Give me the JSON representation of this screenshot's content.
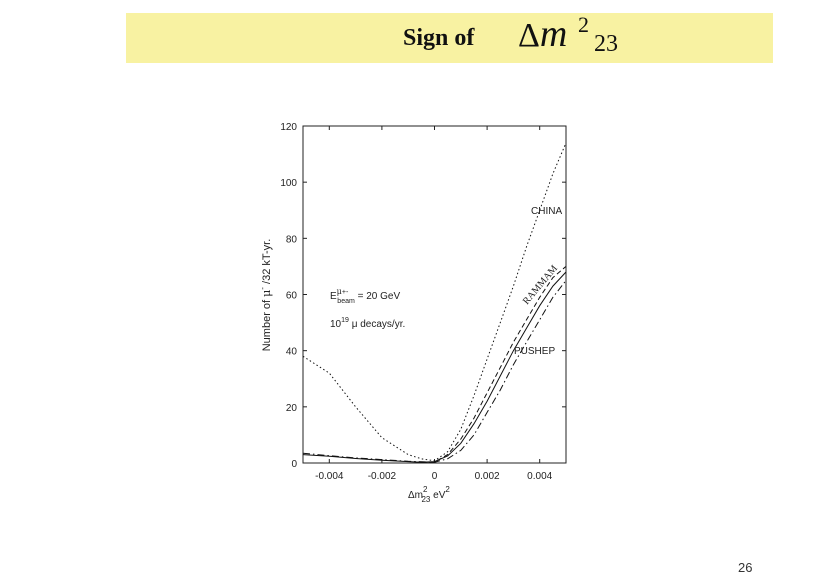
{
  "slide": {
    "title": "Sign of",
    "title_math": {
      "symbol": "Δ",
      "variable": "m",
      "superscript": "2",
      "subscript": "23"
    },
    "page_number": "26"
  },
  "chart_data": {
    "type": "line",
    "xlabel": {
      "base": "Δm",
      "sup": "2",
      "sub": "23",
      "unit": " eV",
      "unit_sup": "2"
    },
    "ylabel": {
      "before": "Number of ",
      "mu": "μ",
      "sup": "-",
      "after": " /32 kT-yr."
    },
    "xlim": [
      -0.005,
      0.005
    ],
    "ylim": [
      0,
      120
    ],
    "x_ticks": [
      -0.004,
      -0.002,
      0,
      0.002,
      0.004
    ],
    "x_tick_labels": [
      "-0.004",
      "-0.002",
      "0",
      "0.002",
      "0.004"
    ],
    "y_ticks": [
      0,
      20,
      40,
      60,
      80,
      100,
      120
    ],
    "y_tick_labels": [
      "0",
      "20",
      "40",
      "60",
      "80",
      "100",
      "120"
    ],
    "grid": false,
    "legend": "none",
    "annotations": {
      "beam_line": {
        "E": "E",
        "mu": "μ",
        "sup": "+-",
        "beam": "beam",
        "value": " = 20 GeV"
      },
      "decay_line": {
        "base": "10",
        "sup": "19",
        "text": " μ decays/yr."
      },
      "china": "CHINA",
      "rammam": "RAMMAM",
      "pushep": "PUSHEP"
    },
    "series": [
      {
        "name": "CHINA",
        "style": "dotted",
        "points": [
          [
            -0.005,
            38
          ],
          [
            -0.004,
            32
          ],
          [
            -0.003,
            20
          ],
          [
            -0.002,
            9
          ],
          [
            -0.001,
            3
          ],
          [
            -0.0005,
            1.5
          ],
          [
            0,
            0.8
          ],
          [
            0.0005,
            4
          ],
          [
            0.001,
            12
          ],
          [
            0.0015,
            24
          ],
          [
            0.002,
            37
          ],
          [
            0.0025,
            50
          ],
          [
            0.003,
            63
          ],
          [
            0.0035,
            77
          ],
          [
            0.004,
            90
          ],
          [
            0.0045,
            103
          ],
          [
            0.005,
            114
          ]
        ]
      },
      {
        "name": "RAMMAM",
        "style": "solid",
        "points": [
          [
            -0.005,
            3
          ],
          [
            -0.004,
            2.4
          ],
          [
            -0.003,
            1.6
          ],
          [
            -0.002,
            1
          ],
          [
            -0.001,
            0.5
          ],
          [
            -0.0005,
            0.3
          ],
          [
            0,
            0.5
          ],
          [
            0.0005,
            2.5
          ],
          [
            0.001,
            7
          ],
          [
            0.0015,
            14
          ],
          [
            0.002,
            22
          ],
          [
            0.0025,
            31
          ],
          [
            0.003,
            40
          ],
          [
            0.0035,
            48
          ],
          [
            0.004,
            56
          ],
          [
            0.0045,
            63
          ],
          [
            0.005,
            68
          ]
        ]
      },
      {
        "name": "",
        "style": "dash",
        "points": [
          [
            -0.0005,
            0.2
          ],
          [
            0,
            0.3
          ],
          [
            0.0005,
            3
          ],
          [
            0.001,
            8.5
          ],
          [
            0.0015,
            16
          ],
          [
            0.002,
            25
          ],
          [
            0.0025,
            34
          ],
          [
            0.003,
            43
          ],
          [
            0.0035,
            51
          ],
          [
            0.004,
            59
          ],
          [
            0.0045,
            66
          ],
          [
            0.005,
            70
          ]
        ]
      },
      {
        "name": "PUSHEP",
        "style": "dashdot",
        "points": [
          [
            -0.005,
            3.5
          ],
          [
            -0.004,
            2.6
          ],
          [
            -0.003,
            1.8
          ],
          [
            -0.002,
            1.2
          ],
          [
            -0.001,
            0.6
          ],
          [
            0,
            0.3
          ],
          [
            0.0005,
            1.5
          ],
          [
            0.001,
            4.5
          ],
          [
            0.0015,
            10
          ],
          [
            0.002,
            18
          ],
          [
            0.0025,
            26
          ],
          [
            0.003,
            35
          ],
          [
            0.0035,
            43
          ],
          [
            0.004,
            51
          ],
          [
            0.0045,
            59
          ],
          [
            0.005,
            65
          ]
        ]
      }
    ]
  }
}
